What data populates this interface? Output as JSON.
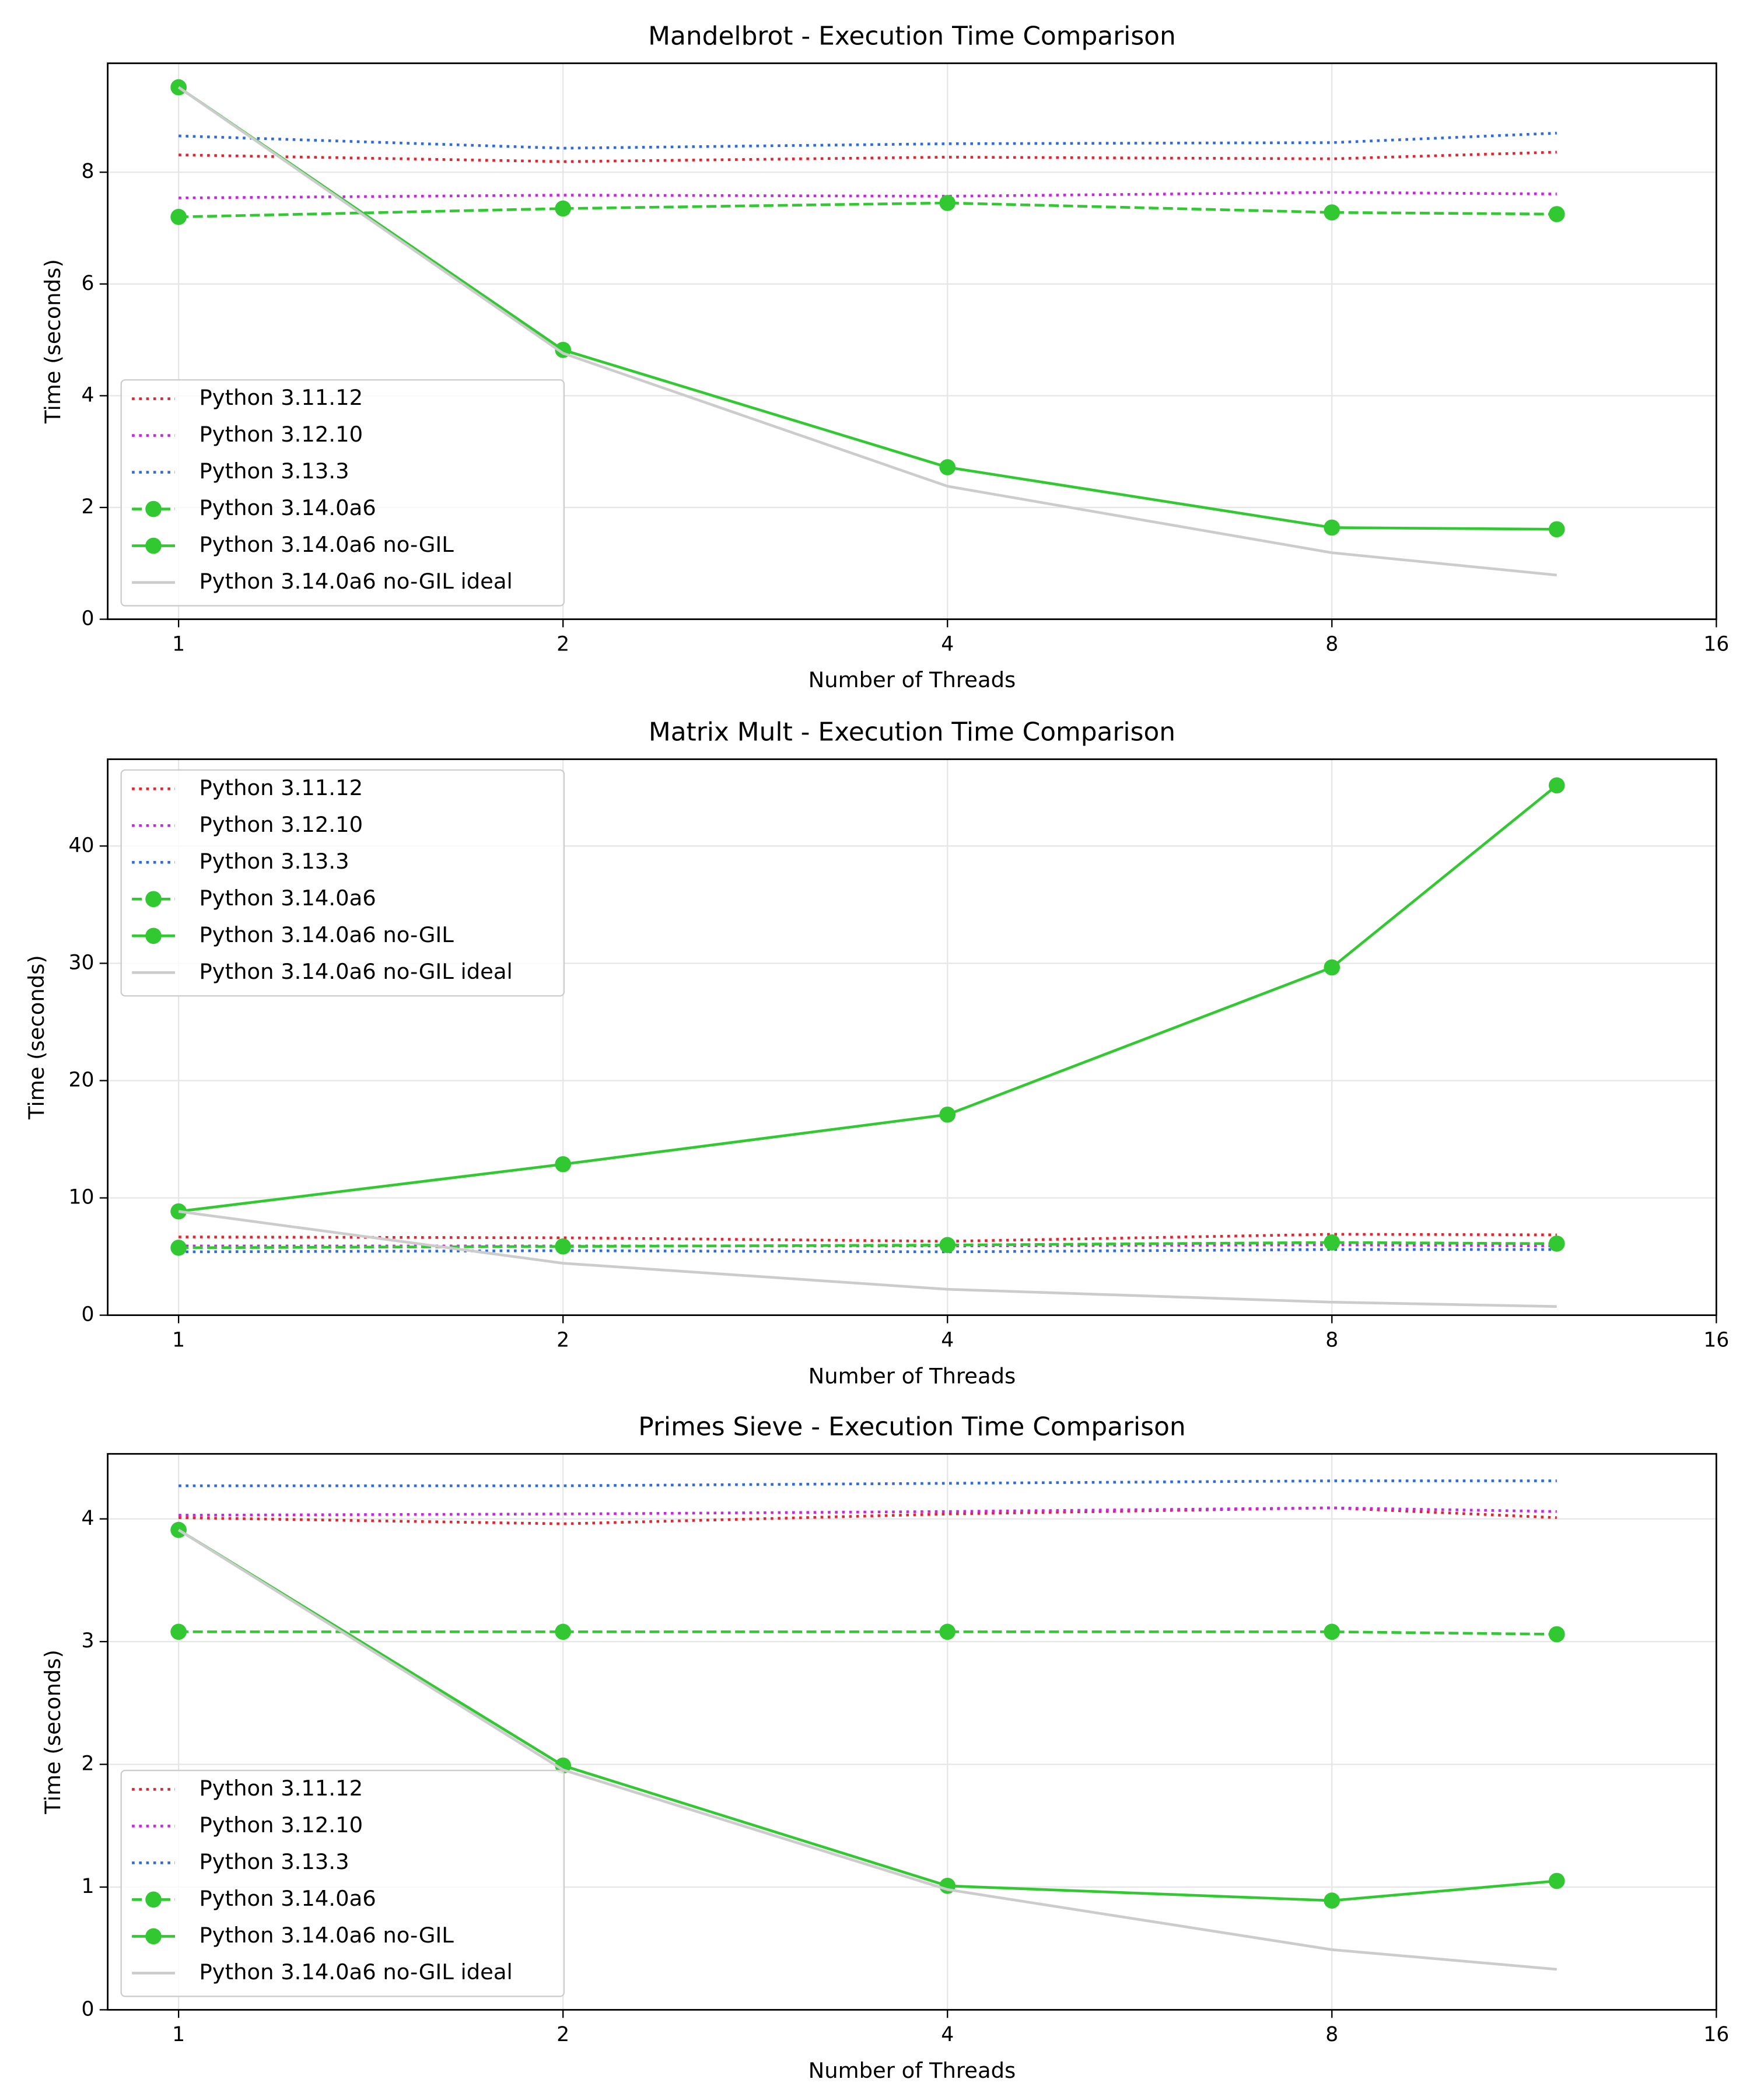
{
  "chart_data": [
    {
      "type": "line",
      "title": "Mandelbrot - Execution Time Comparison",
      "xlabel": "Number of Threads",
      "ylabel": "Time (seconds)",
      "x": [
        1,
        2,
        4,
        8,
        12
      ],
      "xscale": "log",
      "xlim": [
        0.88,
        16
      ],
      "xticks": [
        1,
        2,
        4,
        8,
        16
      ],
      "ylim": [
        0,
        9.95
      ],
      "yticks": [
        0,
        2,
        4,
        6,
        8
      ],
      "grid": true,
      "legend": "lower left",
      "series": [
        {
          "name": "Python 3.11.12",
          "color": "#e0262e",
          "linestyle": "dotted",
          "marker": false,
          "values": [
            8.31,
            8.19,
            8.27,
            8.24,
            8.36
          ]
        },
        {
          "name": "Python 3.12.10",
          "color": "#c428e0",
          "linestyle": "dotted",
          "marker": false,
          "values": [
            7.54,
            7.59,
            7.57,
            7.64,
            7.61
          ]
        },
        {
          "name": "Python 3.13.3",
          "color": "#2f6be0",
          "linestyle": "dotted",
          "marker": false,
          "values": [
            8.65,
            8.43,
            8.51,
            8.53,
            8.7
          ]
        },
        {
          "name": "Python 3.14.0a6",
          "color": "#32c832",
          "linestyle": "dashed",
          "marker": true,
          "values": [
            7.2,
            7.35,
            7.45,
            7.28,
            7.25
          ]
        },
        {
          "name": "Python 3.14.0a6 no-GIL",
          "color": "#32c832",
          "linestyle": "solid",
          "marker": true,
          "values": [
            9.52,
            4.82,
            2.72,
            1.64,
            1.61
          ]
        },
        {
          "name": "Python 3.14.0a6 no-GIL ideal",
          "color": "#cccccc",
          "linestyle": "solid",
          "marker": false,
          "values": [
            9.52,
            4.76,
            2.38,
            1.19,
            0.79
          ]
        }
      ]
    },
    {
      "type": "line",
      "title": "Matrix Mult - Execution Time Comparison",
      "xlabel": "Number of Threads",
      "ylabel": "Time (seconds)",
      "x": [
        1,
        2,
        4,
        8,
        12
      ],
      "xscale": "log",
      "xlim": [
        0.88,
        16
      ],
      "xticks": [
        1,
        2,
        4,
        8,
        16
      ],
      "ylim": [
        0,
        47.4
      ],
      "yticks": [
        0,
        10,
        20,
        30,
        40
      ],
      "grid": true,
      "legend": "upper left",
      "series": [
        {
          "name": "Python 3.11.12",
          "color": "#e0262e",
          "linestyle": "dotted",
          "marker": false,
          "values": [
            6.67,
            6.6,
            6.3,
            6.9,
            6.85
          ]
        },
        {
          "name": "Python 3.12.10",
          "color": "#c428e0",
          "linestyle": "dotted",
          "marker": false,
          "values": [
            5.9,
            5.9,
            5.9,
            6.0,
            5.9
          ]
        },
        {
          "name": "Python 3.13.3",
          "color": "#2f6be0",
          "linestyle": "dotted",
          "marker": false,
          "values": [
            5.4,
            5.5,
            5.4,
            5.6,
            5.6
          ]
        },
        {
          "name": "Python 3.14.0a6",
          "color": "#32c832",
          "linestyle": "dashed",
          "marker": true,
          "values": [
            5.75,
            5.86,
            5.98,
            6.2,
            6.1
          ]
        },
        {
          "name": "Python 3.14.0a6 no-GIL",
          "color": "#32c832",
          "linestyle": "solid",
          "marker": true,
          "values": [
            8.85,
            12.87,
            17.1,
            29.65,
            45.17
          ]
        },
        {
          "name": "Python 3.14.0a6 no-GIL ideal",
          "color": "#cccccc",
          "linestyle": "solid",
          "marker": false,
          "values": [
            8.85,
            4.43,
            2.21,
            1.11,
            0.74
          ]
        }
      ]
    },
    {
      "type": "line",
      "title": "Primes Sieve - Execution Time Comparison",
      "xlabel": "Number of Threads",
      "ylabel": "Time (seconds)",
      "x": [
        1,
        2,
        4,
        8,
        12
      ],
      "xscale": "log",
      "xlim": [
        0.88,
        16
      ],
      "xticks": [
        1,
        2,
        4,
        8,
        16
      ],
      "ylim": [
        0,
        4.53
      ],
      "yticks": [
        0,
        1,
        2,
        3,
        4
      ],
      "grid": true,
      "legend": "lower left",
      "series": [
        {
          "name": "Python 3.11.12",
          "color": "#e0262e",
          "linestyle": "dotted",
          "marker": false,
          "values": [
            4.01,
            3.96,
            4.04,
            4.09,
            4.01
          ]
        },
        {
          "name": "Python 3.12.10",
          "color": "#c428e0",
          "linestyle": "dotted",
          "marker": false,
          "values": [
            4.03,
            4.04,
            4.06,
            4.09,
            4.06
          ]
        },
        {
          "name": "Python 3.13.3",
          "color": "#2f6be0",
          "linestyle": "dotted",
          "marker": false,
          "values": [
            4.27,
            4.27,
            4.29,
            4.31,
            4.31
          ]
        },
        {
          "name": "Python 3.14.0a6",
          "color": "#32c832",
          "linestyle": "dashed",
          "marker": true,
          "values": [
            3.08,
            3.08,
            3.08,
            3.08,
            3.06
          ]
        },
        {
          "name": "Python 3.14.0a6 no-GIL",
          "color": "#32c832",
          "linestyle": "solid",
          "marker": true,
          "values": [
            3.91,
            1.99,
            1.01,
            0.89,
            1.05
          ]
        },
        {
          "name": "Python 3.14.0a6 no-GIL ideal",
          "color": "#cccccc",
          "linestyle": "solid",
          "marker": false,
          "values": [
            3.91,
            1.955,
            0.98,
            0.49,
            0.33
          ]
        }
      ]
    }
  ]
}
